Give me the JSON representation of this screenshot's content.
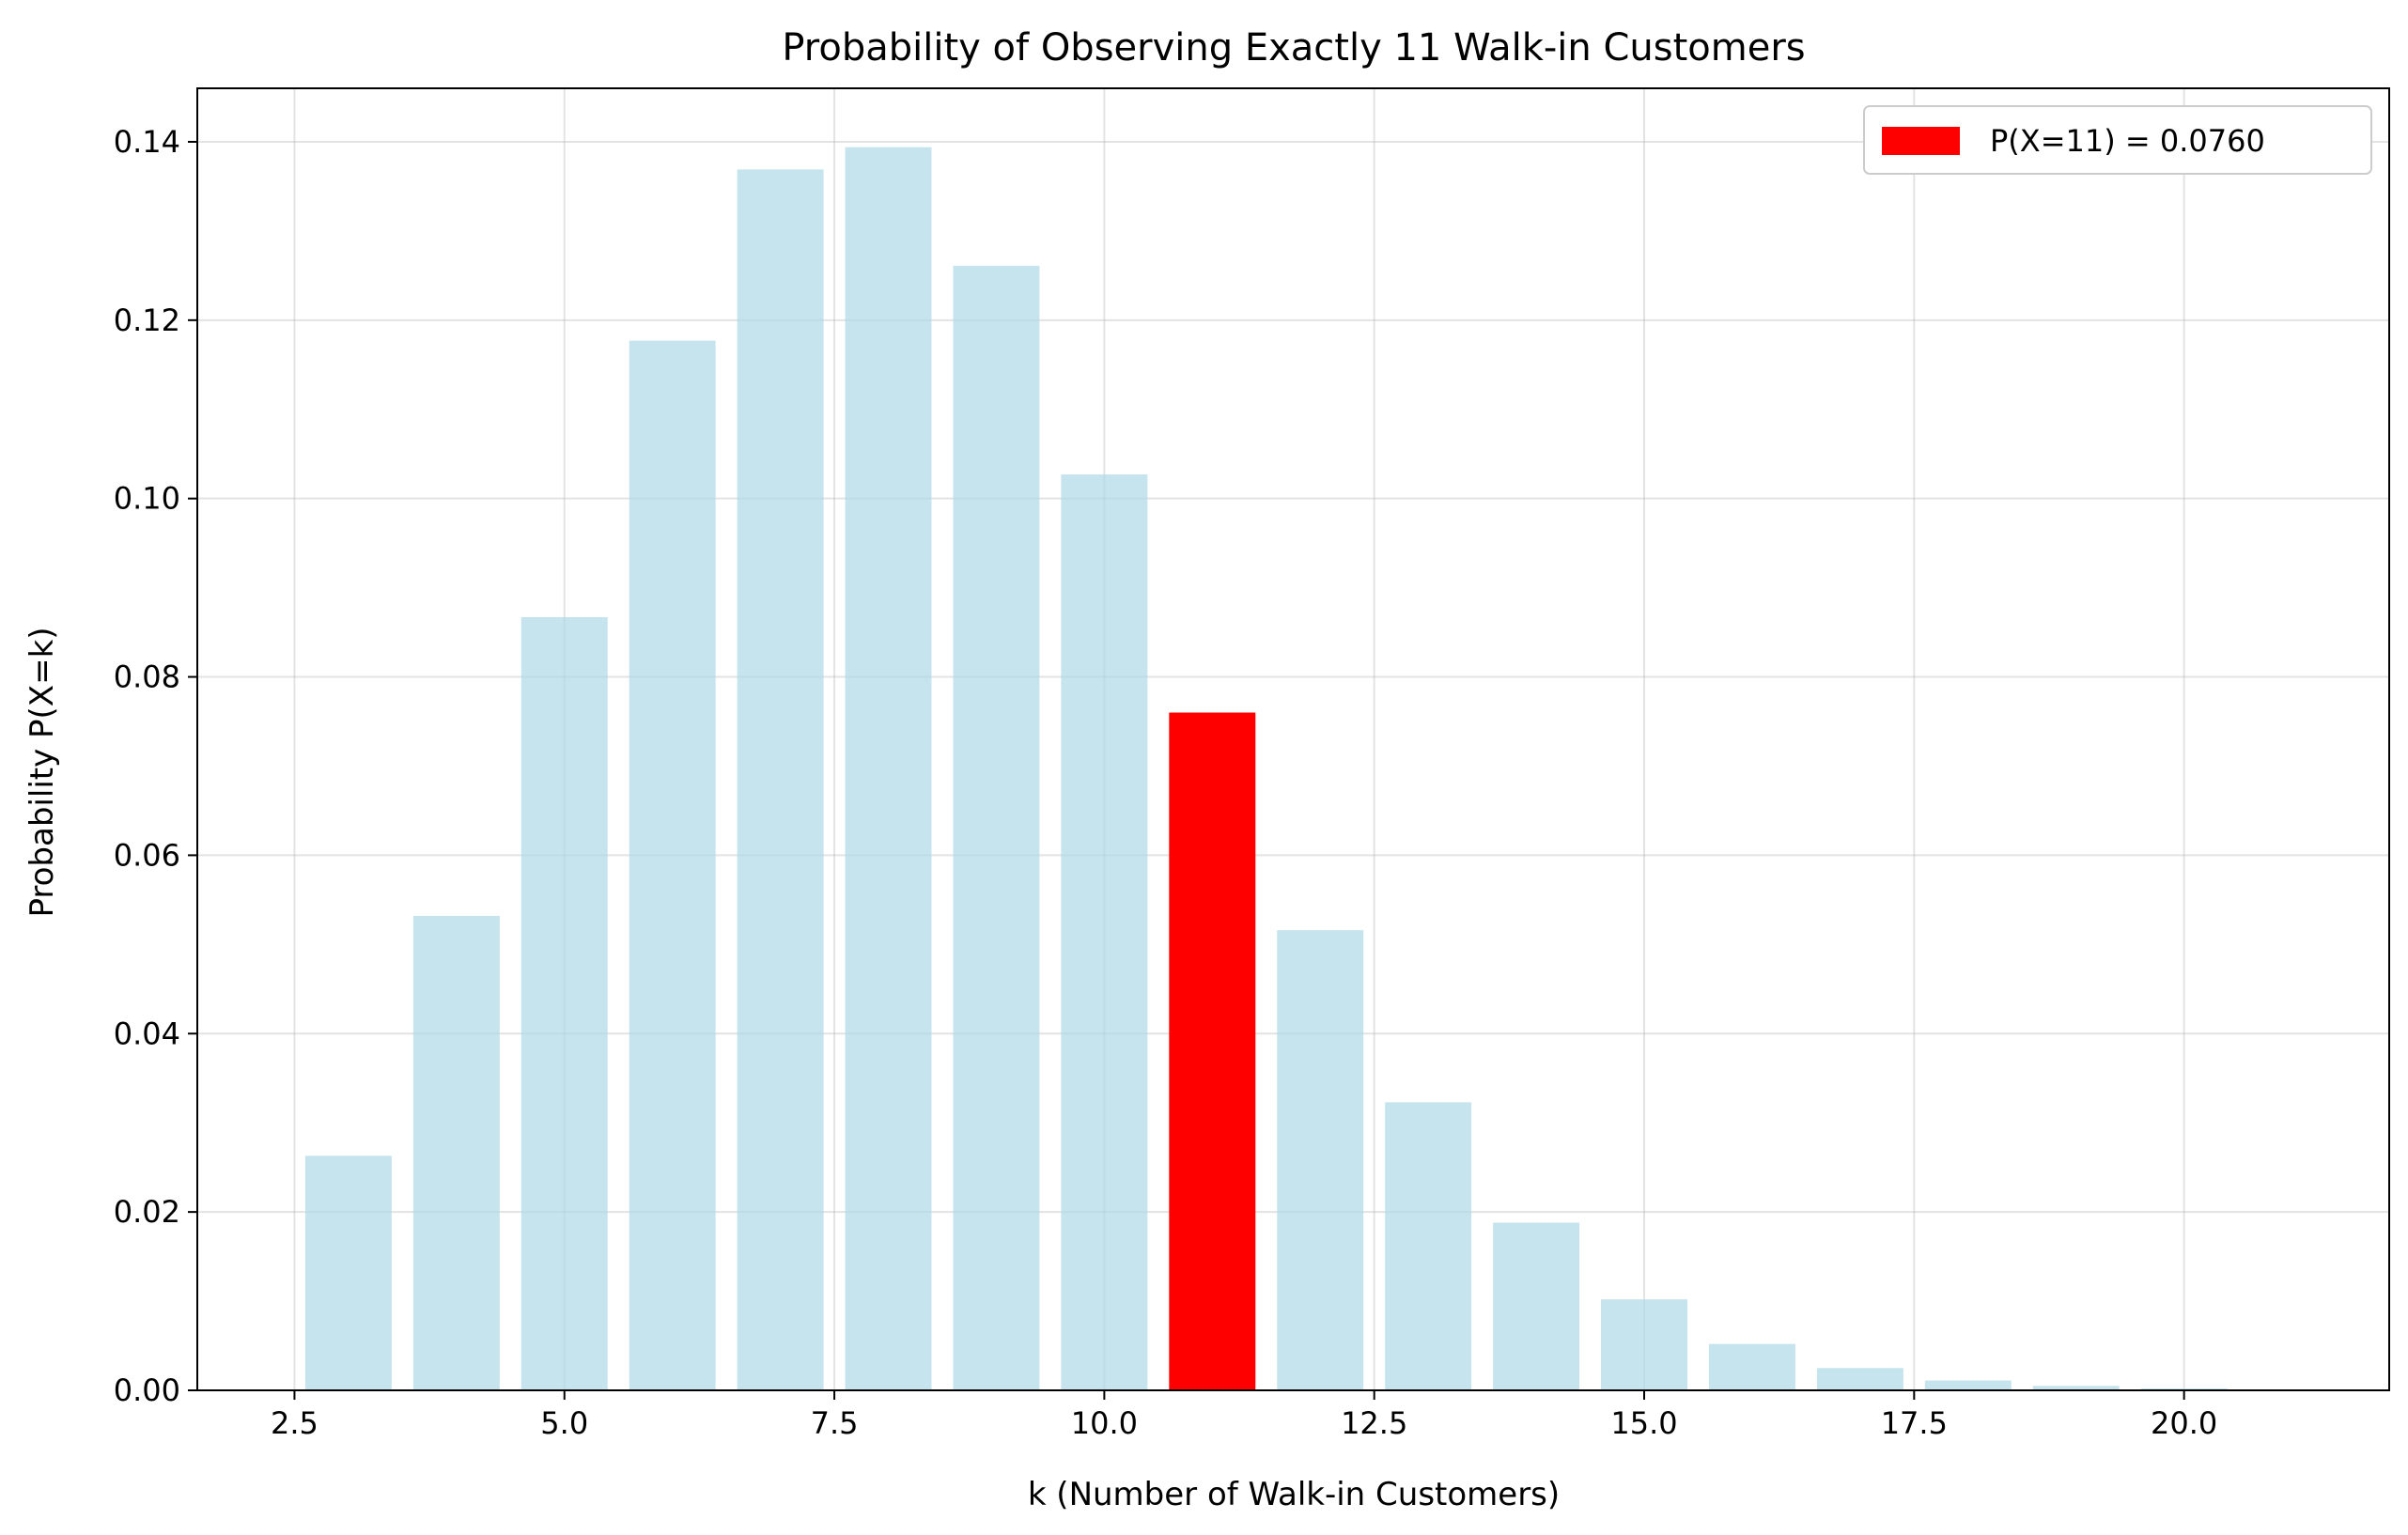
{
  "chart_data": {
    "type": "bar",
    "title": "Probability of Observing Exactly 11 Walk-in Customers",
    "xlabel": "k (Number of Walk-in Customers)",
    "ylabel": "Probability P(X=k)",
    "xlim": [
      1.6,
      21.9
    ],
    "ylim": [
      0,
      0.146
    ],
    "x_ticks": [
      2.5,
      5.0,
      7.5,
      10.0,
      12.5,
      15.0,
      17.5,
      20.0
    ],
    "x_tick_labels": [
      "2.5",
      "5.0",
      "7.5",
      "10.0",
      "12.5",
      "15.0",
      "17.5",
      "20.0"
    ],
    "y_ticks": [
      0.0,
      0.02,
      0.04,
      0.06,
      0.08,
      0.1,
      0.12,
      0.14
    ],
    "y_tick_labels": [
      "0.00",
      "0.02",
      "0.04",
      "0.06",
      "0.08",
      "0.10",
      "0.12",
      "0.14"
    ],
    "grid": true,
    "legend_position": "top-right",
    "bar_width": 0.8,
    "x": [
      3,
      4,
      5,
      6,
      7,
      8,
      9,
      10,
      11,
      12,
      13,
      14,
      15,
      16,
      17,
      18,
      19,
      20,
      21
    ],
    "values": [
      0.0263,
      0.0532,
      0.0867,
      0.1177,
      0.1369,
      0.1394,
      0.1261,
      0.1027,
      0.076,
      0.0516,
      0.0323,
      0.0188,
      0.0102,
      0.0052,
      0.0025,
      0.0011,
      0.0005,
      0.0002,
      0.0001
    ],
    "highlight": {
      "x": 11,
      "value": 0.076,
      "legend_label": "P(X=11) = 0.0760"
    },
    "colors": {
      "bar": "#add8e6",
      "bar_opacity": 0.7,
      "highlight": "#ff0000",
      "grid": "#b0b0b0"
    }
  }
}
